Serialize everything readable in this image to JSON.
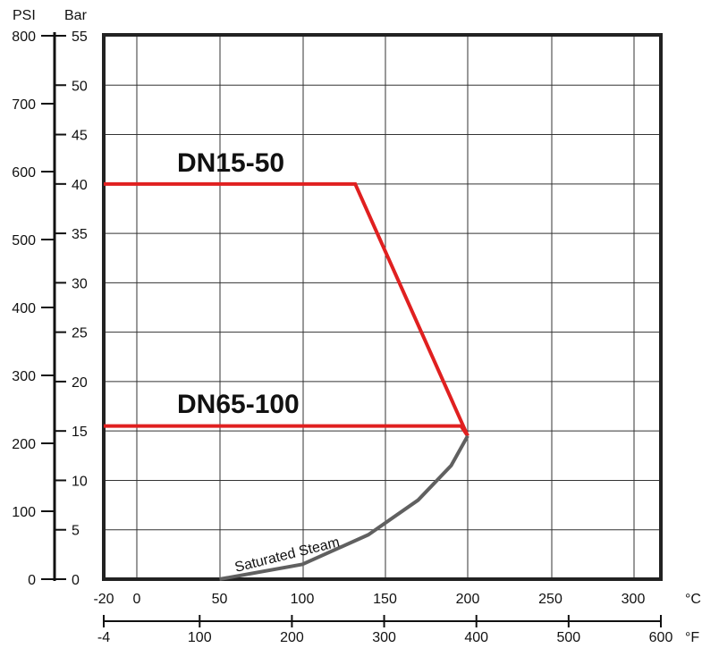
{
  "chart_data": {
    "type": "line",
    "title": "",
    "units": {
      "psi": "PSI",
      "bar": "Bar",
      "celsius": "°C",
      "fahrenheit": "°F"
    },
    "axes": {
      "psi": {
        "ticks": [
          0,
          100,
          200,
          300,
          400,
          500,
          600,
          700,
          800
        ],
        "range": [
          0,
          800
        ]
      },
      "bar": {
        "ticks": [
          0,
          5,
          10,
          15,
          20,
          25,
          30,
          35,
          40,
          45,
          50,
          55
        ],
        "range": [
          0,
          55
        ]
      },
      "celsius": {
        "ticks": [
          -20,
          0,
          50,
          100,
          150,
          200,
          250,
          300
        ],
        "range": [
          -20,
          315
        ]
      },
      "fahrenheit": {
        "ticks": [
          -4,
          100,
          200,
          300,
          400,
          500,
          600
        ],
        "range": [
          -4,
          600
        ]
      }
    },
    "grid": true,
    "x_unit": "°C",
    "y_unit": "Bar",
    "series": [
      {
        "name": "DN15-50",
        "color": "#e02020",
        "points": [
          [
            -20,
            40
          ],
          [
            132,
            40
          ],
          [
            200,
            14.5
          ]
        ]
      },
      {
        "name": "DN65-100",
        "color": "#e02020",
        "points": [
          [
            -20,
            15.5
          ],
          [
            196,
            15.5
          ],
          [
            200,
            14.5
          ]
        ]
      },
      {
        "name": "Saturated Steam",
        "color": "#606060",
        "points": [
          [
            50,
            0
          ],
          [
            100,
            1.5
          ],
          [
            140,
            4.5
          ],
          [
            170,
            8
          ],
          [
            190,
            11.5
          ],
          [
            200,
            14.5
          ]
        ]
      }
    ]
  }
}
